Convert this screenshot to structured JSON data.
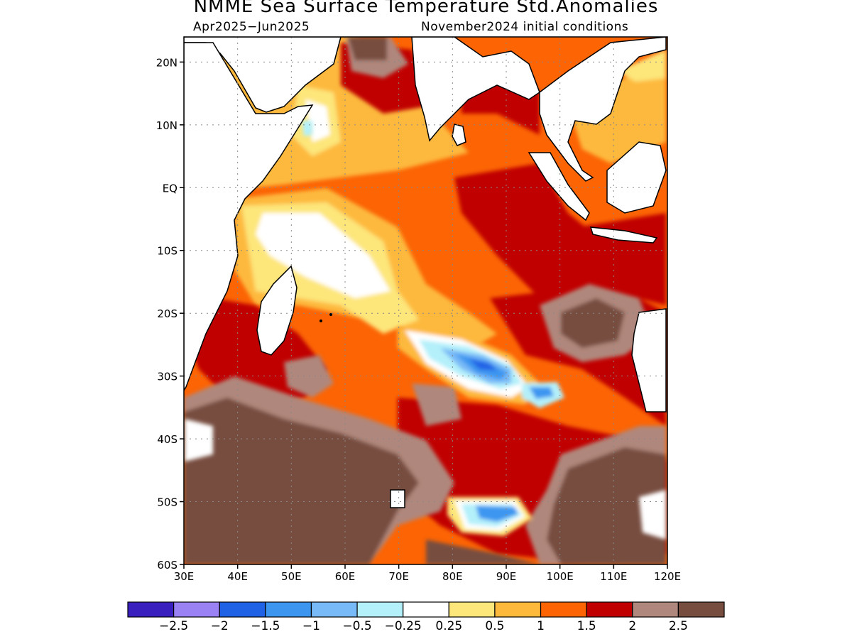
{
  "title": "NMME Sea Surface Temperature Std.Anomalies",
  "subtitle_left": "Apr2025−Jun2025",
  "subtitle_right": "November2024 initial conditions",
  "map": {
    "lon_range": [
      30,
      120
    ],
    "lat_range": [
      -60,
      24
    ],
    "lat_ticks": [
      {
        "value": 20,
        "label": "20N"
      },
      {
        "value": 10,
        "label": "10N"
      },
      {
        "value": 0,
        "label": "EQ"
      },
      {
        "value": -10,
        "label": "10S"
      },
      {
        "value": -20,
        "label": "20S"
      },
      {
        "value": -30,
        "label": "30S"
      },
      {
        "value": -40,
        "label": "40S"
      },
      {
        "value": -50,
        "label": "50S"
      },
      {
        "value": -60,
        "label": "60S"
      }
    ],
    "lon_ticks": [
      {
        "value": 30,
        "label": "30E"
      },
      {
        "value": 40,
        "label": "40E"
      },
      {
        "value": 50,
        "label": "50E"
      },
      {
        "value": 60,
        "label": "60E"
      },
      {
        "value": 70,
        "label": "70E"
      },
      {
        "value": 80,
        "label": "80E"
      },
      {
        "value": 90,
        "label": "90E"
      },
      {
        "value": 100,
        "label": "100E"
      },
      {
        "value": 110,
        "label": "110E"
      },
      {
        "value": 120,
        "label": "120E"
      }
    ]
  },
  "colorbar": {
    "colors": [
      "#3a1fbf",
      "#9a82f5",
      "#2062e6",
      "#3c96f0",
      "#78b9f7",
      "#b4f0fa",
      "#ffffff",
      "#fde67a",
      "#fdb93c",
      "#fc6404",
      "#c00000",
      "#b0877c",
      "#774d40"
    ],
    "labels": [
      "−2.5",
      "−2",
      "−1.5",
      "−1",
      "−0.5",
      "−0.25",
      "0.25",
      "0.5",
      "1",
      "1.5",
      "2",
      "2.5"
    ]
  },
  "chart_data": {
    "type": "heatmap",
    "title": "NMME Sea Surface Temperature Std.Anomalies",
    "period": "Apr2025−Jun2025",
    "initial_conditions": "November2024 initial conditions",
    "x_axis": "longitude",
    "xlim": [
      30,
      120
    ],
    "y_axis": "latitude",
    "ylim": [
      -60,
      24
    ],
    "grid": true,
    "levels": [
      -2.5,
      -2,
      -1.5,
      -1,
      -0.5,
      -0.25,
      0.25,
      0.5,
      1,
      1.5,
      2,
      2.5
    ],
    "anomaly_features": [
      {
        "lon": 85,
        "lat": -28,
        "value": -1.5
      },
      {
        "lon": 95,
        "lat": -32,
        "value": -1
      },
      {
        "lon": 88,
        "lat": -52,
        "value": -1.5
      },
      {
        "lon": 50,
        "lat": -8,
        "value": 0
      },
      {
        "lon": 68,
        "lat": -15,
        "value": 0
      },
      {
        "lon": 82,
        "lat": 0,
        "value": 2
      },
      {
        "lon": 75,
        "lat": -5,
        "value": 1.5
      },
      {
        "lon": 108,
        "lat": -20,
        "value": 2.5
      },
      {
        "lon": 40,
        "lat": -45,
        "value": 2.5
      },
      {
        "lon": 65,
        "lat": -52,
        "value": 2.5
      },
      {
        "lon": 68,
        "lat": 20,
        "value": 2.5
      },
      {
        "lon": 115,
        "lat": -45,
        "value": 2.5
      },
      {
        "lon": 60,
        "lat": 5,
        "value": 0.5
      },
      {
        "lon": 90,
        "lat": -40,
        "value": 2
      }
    ]
  }
}
